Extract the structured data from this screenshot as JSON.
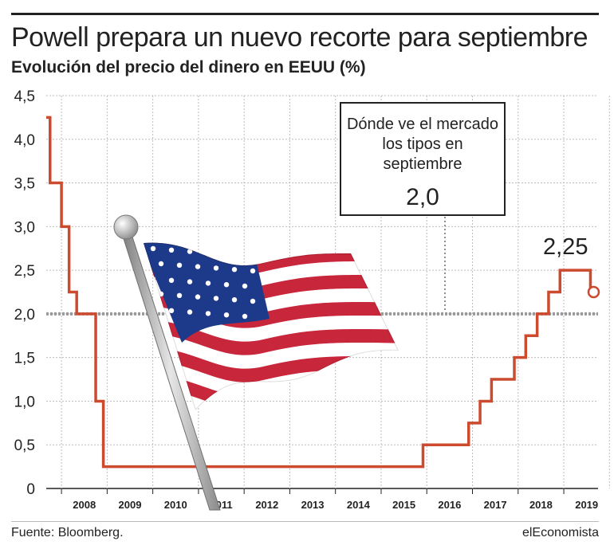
{
  "header": {
    "title": "Powell prepara un nuevo recorte para septiembre",
    "subtitle": "Evolución del precio del dinero en EEUU (%)"
  },
  "callout": {
    "text": "Dónde ve el mercado los tipos en septiembre",
    "value": "2,0"
  },
  "last_value_label": "2,25",
  "footer": {
    "source": "Fuente: Bloomberg.",
    "brand": "elEconomista"
  },
  "colors": {
    "series": "#cc4a2e",
    "reference": "#999999",
    "grid": "#bdbdbd",
    "text": "#222222"
  },
  "illustration": "us-flag-on-pole",
  "chart_data": {
    "type": "line",
    "step": true,
    "title": "Powell prepara un nuevo recorte para septiembre",
    "subtitle": "Evolución del precio del dinero en EEUU (%)",
    "xlabel": "",
    "ylabel": "",
    "xlim": [
      "2007-09",
      "2019-10"
    ],
    "ylim": [
      0,
      4.5
    ],
    "y_ticks": [
      0,
      0.5,
      1.0,
      1.5,
      2.0,
      2.5,
      3.0,
      3.5,
      4.0,
      4.5
    ],
    "y_tick_labels": [
      "0",
      "0,5",
      "1,0",
      "1,5",
      "2,0",
      "2,5",
      "3,0",
      "3,5",
      "4,0",
      "4,5"
    ],
    "x_tick_labels": [
      "2008",
      "2009",
      "2010",
      "2011",
      "2012",
      "2013",
      "2014",
      "2015",
      "2016",
      "2017",
      "2018",
      "2019"
    ],
    "grid": true,
    "reference_line": {
      "y": 2.0,
      "label": "2,0"
    },
    "series": [
      {
        "name": "",
        "x": [
          "2007-09",
          "2007-10",
          "2008-01",
          "2008-01",
          "2008-03",
          "2008-04",
          "2008-05",
          "2008-10",
          "2008-10",
          "2008-12",
          "2015-12",
          "2016-12",
          "2017-03",
          "2017-06",
          "2017-12",
          "2018-03",
          "2018-06",
          "2018-09",
          "2018-12",
          "2019-07",
          "2019-08"
        ],
        "y": [
          4.25,
          3.5,
          3.0,
          3.0,
          2.25,
          2.25,
          2.0,
          1.5,
          1.0,
          0.25,
          0.5,
          0.75,
          1.0,
          1.25,
          1.5,
          1.75,
          2.0,
          2.25,
          2.5,
          2.5,
          2.25
        ]
      }
    ],
    "last_point": {
      "x": "2019-08",
      "y": 2.25,
      "label": "2,25"
    }
  }
}
